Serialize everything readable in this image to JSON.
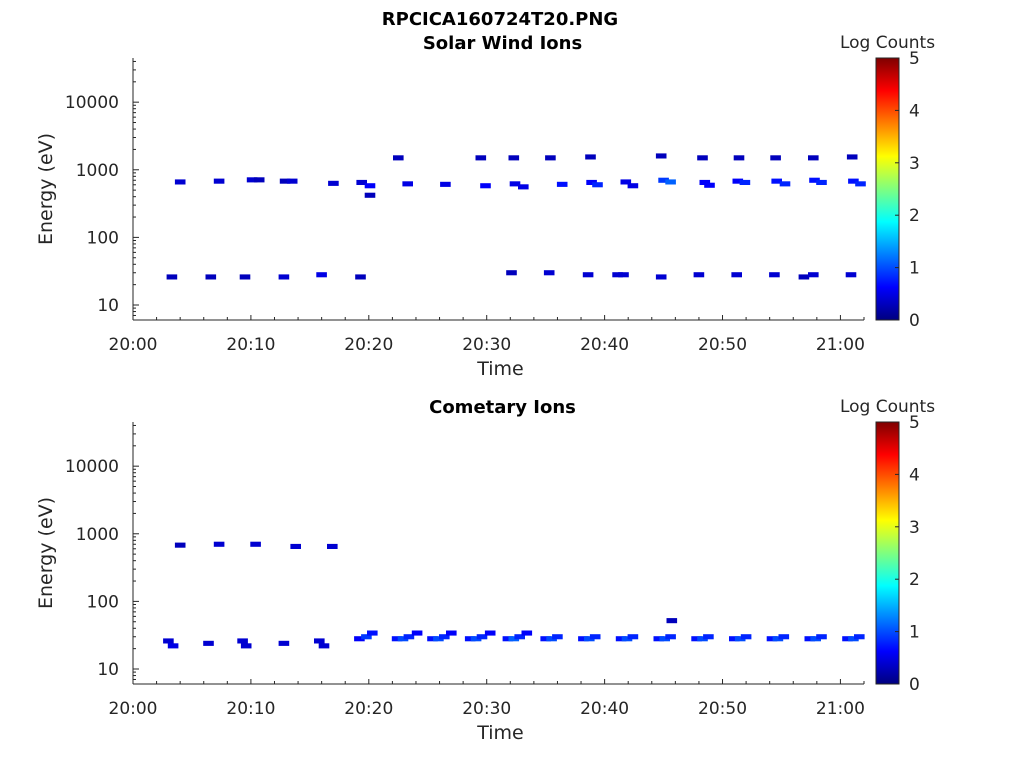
{
  "figure_title": "RPCICA160724T20.PNG",
  "colors": {
    "colormap": [
      "#00007f",
      "#0000ff",
      "#007fff",
      "#00ffff",
      "#7fff7f",
      "#ffff00",
      "#ff7f00",
      "#ff0000",
      "#7f0000"
    ],
    "axis": "#262626"
  },
  "chart_data": [
    {
      "type": "heatmap",
      "title": "Solar Wind Ions",
      "xlabel": "Time",
      "ylabel": "Energy (eV)",
      "colorbar_label": "Log Counts",
      "colorbar_range": [
        0,
        5
      ],
      "colorbar_ticks": [
        "0",
        "1",
        "2",
        "3",
        "4",
        "5"
      ],
      "yscale": "log",
      "ylim": [
        6,
        45000
      ],
      "y_ticks": [
        {
          "v": 10,
          "label": "10"
        },
        {
          "v": 100,
          "label": "100"
        },
        {
          "v": 1000,
          "label": "1000"
        },
        {
          "v": 10000,
          "label": "10000"
        }
      ],
      "x_ticks": [
        "20:00",
        "20:10",
        "20:20",
        "20:30",
        "20:40",
        "20:50",
        "21:00"
      ],
      "xlim_minutes": [
        0,
        62
      ],
      "cells": [
        [
          3.3,
          26,
          0.3
        ],
        [
          4.0,
          660,
          0.4
        ],
        [
          6.6,
          26,
          0.3
        ],
        [
          7.3,
          680,
          0.4
        ],
        [
          9.5,
          26,
          0.3
        ],
        [
          10.1,
          710,
          0.4
        ],
        [
          10.7,
          710,
          0.3
        ],
        [
          12.8,
          26,
          0.4
        ],
        [
          12.9,
          680,
          0.3
        ],
        [
          13.5,
          680,
          0.4
        ],
        [
          16.0,
          28,
          0.5
        ],
        [
          17.0,
          630,
          0.4
        ],
        [
          19.3,
          26,
          0.3
        ],
        [
          19.4,
          650,
          0.4
        ],
        [
          20.1,
          580,
          0.6
        ],
        [
          20.1,
          420,
          0.3
        ],
        [
          22.5,
          1500,
          0.3
        ],
        [
          23.3,
          620,
          0.5
        ],
        [
          26.5,
          610,
          0.5
        ],
        [
          29.5,
          1500,
          0.3
        ],
        [
          29.9,
          580,
          0.6
        ],
        [
          32.1,
          30,
          0.3
        ],
        [
          32.3,
          1500,
          0.3
        ],
        [
          32.4,
          620,
          0.5
        ],
        [
          33.1,
          560,
          0.5
        ],
        [
          35.3,
          30,
          0.4
        ],
        [
          35.4,
          1500,
          0.3
        ],
        [
          36.4,
          610,
          0.7
        ],
        [
          38.6,
          28,
          0.4
        ],
        [
          38.8,
          1550,
          0.3
        ],
        [
          38.9,
          650,
          0.6
        ],
        [
          39.4,
          600,
          0.8
        ],
        [
          41.1,
          28,
          0.4
        ],
        [
          41.6,
          28,
          0.4
        ],
        [
          41.8,
          660,
          0.5
        ],
        [
          42.4,
          580,
          0.5
        ],
        [
          44.8,
          26,
          0.4
        ],
        [
          44.8,
          1600,
          0.3
        ],
        [
          45.0,
          700,
          0.9
        ],
        [
          45.6,
          660,
          1.1
        ],
        [
          48.0,
          28,
          0.4
        ],
        [
          48.3,
          1500,
          0.3
        ],
        [
          48.5,
          650,
          0.6
        ],
        [
          48.9,
          590,
          0.6
        ],
        [
          51.2,
          28,
          0.4
        ],
        [
          51.4,
          1500,
          0.3
        ],
        [
          51.3,
          680,
          0.6
        ],
        [
          51.9,
          650,
          0.8
        ],
        [
          54.4,
          28,
          0.4
        ],
        [
          54.5,
          1500,
          0.3
        ],
        [
          54.6,
          680,
          0.7
        ],
        [
          55.3,
          620,
          0.8
        ],
        [
          56.9,
          26,
          0.3
        ],
        [
          57.7,
          28,
          0.4
        ],
        [
          57.7,
          1500,
          0.3
        ],
        [
          57.8,
          700,
          0.7
        ],
        [
          58.4,
          650,
          0.8
        ],
        [
          60.9,
          28,
          0.4
        ],
        [
          61.0,
          1550,
          0.3
        ],
        [
          61.1,
          680,
          0.7
        ],
        [
          61.7,
          620,
          0.8
        ]
      ]
    },
    {
      "type": "heatmap",
      "title": "Cometary Ions",
      "xlabel": "Time",
      "ylabel": "Energy (eV)",
      "colorbar_label": "Log Counts",
      "colorbar_range": [
        0,
        5
      ],
      "colorbar_ticks": [
        "0",
        "1",
        "2",
        "3",
        "4",
        "5"
      ],
      "yscale": "log",
      "ylim": [
        6,
        45000
      ],
      "y_ticks": [
        {
          "v": 10,
          "label": "10"
        },
        {
          "v": 100,
          "label": "100"
        },
        {
          "v": 1000,
          "label": "1000"
        },
        {
          "v": 10000,
          "label": "10000"
        }
      ],
      "x_ticks": [
        "20:00",
        "20:10",
        "20:20",
        "20:30",
        "20:40",
        "20:50",
        "21:00"
      ],
      "xlim_minutes": [
        0,
        62
      ],
      "cells": [
        [
          4.0,
          680,
          0.3
        ],
        [
          7.3,
          700,
          0.4
        ],
        [
          10.4,
          700,
          0.4
        ],
        [
          13.8,
          650,
          0.4
        ],
        [
          16.9,
          650,
          0.4
        ],
        [
          3.0,
          26,
          0.4
        ],
        [
          3.4,
          22,
          0.5
        ],
        [
          6.4,
          24,
          0.4
        ],
        [
          9.3,
          26,
          0.4
        ],
        [
          9.6,
          22,
          0.4
        ],
        [
          12.8,
          24,
          0.4
        ],
        [
          15.8,
          26,
          0.4
        ],
        [
          16.2,
          22,
          0.4
        ],
        [
          19.2,
          28,
          0.6
        ],
        [
          19.8,
          30,
          0.9
        ],
        [
          20.3,
          34,
          0.7
        ],
        [
          22.4,
          28,
          0.7
        ],
        [
          22.9,
          28,
          1.0
        ],
        [
          23.4,
          30,
          0.8
        ],
        [
          24.1,
          34,
          0.6
        ],
        [
          25.4,
          28,
          0.7
        ],
        [
          25.9,
          28,
          1.0
        ],
        [
          26.4,
          30,
          0.8
        ],
        [
          27.0,
          34,
          0.6
        ],
        [
          28.6,
          28,
          0.7
        ],
        [
          29.1,
          28,
          1.0
        ],
        [
          29.6,
          30,
          0.8
        ],
        [
          30.3,
          34,
          0.6
        ],
        [
          31.8,
          28,
          0.7
        ],
        [
          32.3,
          28,
          1.1
        ],
        [
          32.8,
          30,
          0.8
        ],
        [
          33.4,
          34,
          0.6
        ],
        [
          35.0,
          28,
          0.7
        ],
        [
          35.5,
          28,
          1.0
        ],
        [
          36.0,
          30,
          0.8
        ],
        [
          38.2,
          28,
          0.7
        ],
        [
          38.7,
          28,
          1.0
        ],
        [
          39.2,
          30,
          0.8
        ],
        [
          41.4,
          28,
          0.7
        ],
        [
          41.9,
          28,
          1.0
        ],
        [
          42.4,
          30,
          0.8
        ],
        [
          44.6,
          28,
          0.7
        ],
        [
          45.1,
          28,
          1.0
        ],
        [
          45.6,
          30,
          0.8
        ],
        [
          45.7,
          52,
          0.3
        ],
        [
          47.8,
          28,
          0.7
        ],
        [
          48.3,
          28,
          1.0
        ],
        [
          48.8,
          30,
          0.8
        ],
        [
          51.0,
          28,
          0.7
        ],
        [
          51.5,
          28,
          1.0
        ],
        [
          52.0,
          30,
          0.8
        ],
        [
          54.2,
          28,
          0.7
        ],
        [
          54.7,
          28,
          1.0
        ],
        [
          55.2,
          30,
          0.8
        ],
        [
          57.4,
          28,
          0.7
        ],
        [
          57.9,
          28,
          1.0
        ],
        [
          58.4,
          30,
          0.8
        ],
        [
          60.6,
          28,
          0.7
        ],
        [
          61.1,
          28,
          1.0
        ],
        [
          61.6,
          30,
          0.8
        ]
      ]
    }
  ]
}
